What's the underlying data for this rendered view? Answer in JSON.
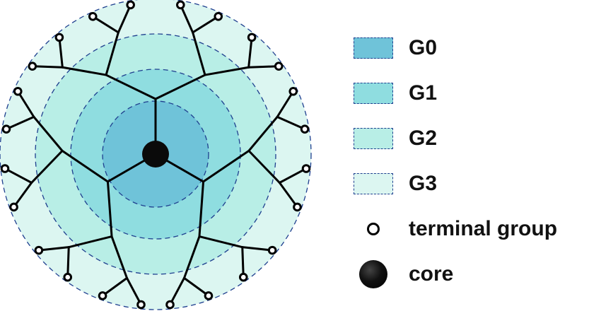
{
  "diagram": {
    "colors": {
      "g0": "#6fc3d9",
      "g1": "#8fdde0",
      "g2": "#b8eee6",
      "g3": "#dcf6f1",
      "ring_border": "#1f3f8f",
      "branch": "#000000"
    },
    "branch_count": 3,
    "generations": 3
  },
  "legend": {
    "items": [
      {
        "label": "G0",
        "color": "#6fc3d9"
      },
      {
        "label": "G1",
        "color": "#8fdde0"
      },
      {
        "label": "G2",
        "color": "#b8eee6"
      },
      {
        "label": "G3",
        "color": "#dcf6f1"
      }
    ],
    "terminal_label": "terminal group",
    "core_label": "core"
  }
}
